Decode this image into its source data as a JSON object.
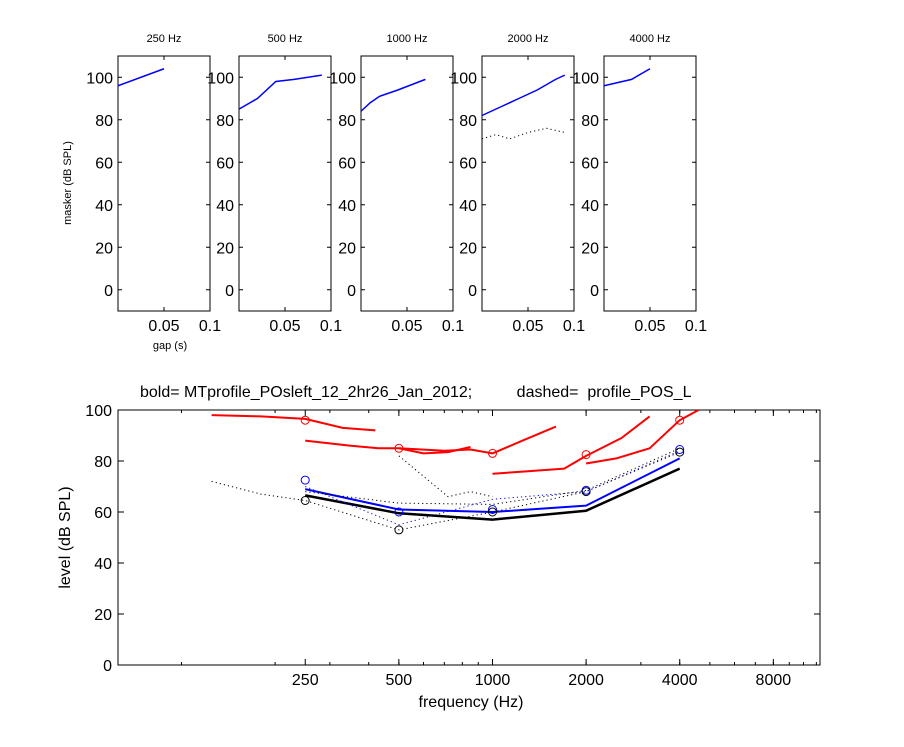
{
  "chart_data": [
    {
      "type": "line",
      "title": "250 Hz",
      "xlabel": "gap (s)",
      "ylabel": "masker (dB SPL)",
      "xlim": [
        0,
        0.1
      ],
      "ylim": [
        -10,
        110
      ],
      "xticks": [
        "0.05",
        "0.1"
      ],
      "yticks": [
        "0",
        "20",
        "40",
        "60",
        "80",
        "100"
      ],
      "series": [
        {
          "style": "solid",
          "color": "#0000ff",
          "x": [
            0.0,
            0.05
          ],
          "y": [
            96,
            104
          ]
        }
      ]
    },
    {
      "type": "line",
      "title": "500 Hz",
      "xlim": [
        0,
        0.1
      ],
      "ylim": [
        -10,
        110
      ],
      "xticks": [
        "0.05",
        "0.1"
      ],
      "yticks": [
        "0",
        "20",
        "40",
        "60",
        "80",
        "100"
      ],
      "series": [
        {
          "style": "solid",
          "color": "#0000ff",
          "x": [
            0.0,
            0.02,
            0.04,
            0.06,
            0.09
          ],
          "y": [
            85,
            90,
            98,
            99,
            101
          ]
        }
      ]
    },
    {
      "type": "line",
      "title": "1000 Hz",
      "xlim": [
        0,
        0.1
      ],
      "ylim": [
        -10,
        110
      ],
      "xticks": [
        "0.05",
        "0.1"
      ],
      "yticks": [
        "0",
        "20",
        "40",
        "60",
        "80",
        "100"
      ],
      "series": [
        {
          "style": "solid",
          "color": "#0000ff",
          "x": [
            0.0,
            0.01,
            0.02,
            0.04,
            0.07
          ],
          "y": [
            84,
            88,
            91,
            94,
            99
          ]
        }
      ]
    },
    {
      "type": "line",
      "title": "2000 Hz",
      "xlim": [
        0,
        0.1
      ],
      "ylim": [
        -10,
        110
      ],
      "xticks": [
        "0.05",
        "0.1"
      ],
      "yticks": [
        "0",
        "20",
        "40",
        "60",
        "80",
        "100"
      ],
      "series": [
        {
          "style": "solid",
          "color": "#0000ff",
          "x": [
            0.0,
            0.02,
            0.04,
            0.06,
            0.08,
            0.09
          ],
          "y": [
            82,
            86,
            90,
            94,
            99,
            101
          ]
        },
        {
          "style": "dotted",
          "color": "#000000",
          "x": [
            0.0,
            0.015,
            0.03,
            0.05,
            0.07,
            0.09
          ],
          "y": [
            71,
            73,
            71,
            74,
            76,
            74
          ]
        }
      ]
    },
    {
      "type": "line",
      "title": "4000 Hz",
      "xlim": [
        0,
        0.1
      ],
      "ylim": [
        -10,
        110
      ],
      "xticks": [
        "0.05",
        "0.1"
      ],
      "yticks": [
        "0",
        "20",
        "40",
        "60",
        "80",
        "100"
      ],
      "series": [
        {
          "style": "solid",
          "color": "#0000ff",
          "x": [
            0.0,
            0.01,
            0.03,
            0.05
          ],
          "y": [
            96,
            97,
            99,
            104
          ]
        }
      ]
    },
    {
      "type": "line",
      "title": "bold= MTprofile_POsleft_12_2hr26_Jan_2012;          dashed=  profile_POS_L",
      "xlabel": "frequency (Hz)",
      "ylabel": "level (dB SPL)",
      "x_scale": "log",
      "xlim": [
        62.5,
        11300
      ],
      "ylim": [
        0,
        100
      ],
      "xticks": [
        250,
        500,
        1000,
        2000,
        4000,
        8000
      ],
      "yticks": [
        0,
        20,
        40,
        60,
        80,
        100
      ],
      "series": [
        {
          "style": "solid",
          "color": "#000000",
          "width": 2.5,
          "x": [
            250,
            500,
            1000,
            2000,
            4000
          ],
          "y": [
            66.5,
            59.5,
            57,
            60.5,
            77
          ]
        },
        {
          "style": "solid",
          "color": "#0000ff",
          "width": 2,
          "x": [
            250,
            500,
            1000,
            2000,
            4000
          ],
          "y": [
            69,
            61,
            60,
            62.5,
            81
          ]
        },
        {
          "style": "dotted",
          "color": "#000000",
          "x": [
            125,
            180,
            250,
            500,
            1000,
            2000,
            4000
          ],
          "y": [
            72,
            67,
            64.5,
            53,
            60,
            68,
            83.5
          ]
        },
        {
          "style": "dotted",
          "color": "#000000",
          "x": [
            250,
            500,
            1000,
            2000,
            4000
          ],
          "y": [
            68,
            63.5,
            63,
            68.5,
            85
          ]
        },
        {
          "style": "dotted",
          "color": "#0000ff",
          "x": [
            250,
            500,
            1000,
            2000,
            4000
          ],
          "y": [
            70,
            55,
            65,
            68,
            84
          ]
        },
        {
          "style": "dotted",
          "color": "#000000",
          "x": [
            500,
            600,
            720,
            850,
            1000
          ],
          "y": [
            82,
            74,
            66,
            68,
            66
          ]
        },
        {
          "style": "solid",
          "color": "#ff0000",
          "width": 2,
          "x": [
            125,
            180,
            250,
            330,
            420
          ],
          "y": [
            98,
            97.5,
            96.5,
            93,
            92
          ]
        },
        {
          "style": "solid",
          "color": "#ff0000",
          "width": 2,
          "x": [
            250,
            350,
            430,
            500,
            600,
            720,
            850
          ],
          "y": [
            88,
            86,
            85,
            85,
            83,
            83.5,
            85.5
          ]
        },
        {
          "style": "solid",
          "color": "#ff0000",
          "width": 2,
          "x": [
            500,
            700,
            850,
            1000,
            1250,
            1600
          ],
          "y": [
            85,
            84,
            84.5,
            83,
            88,
            93.5
          ]
        },
        {
          "style": "solid",
          "color": "#ff0000",
          "width": 2,
          "x": [
            1000,
            1300,
            1700,
            2000,
            2600,
            3200
          ],
          "y": [
            75,
            76,
            77,
            82,
            89,
            97.5
          ]
        },
        {
          "style": "solid",
          "color": "#ff0000",
          "width": 2,
          "x": [
            2000,
            2500,
            3200,
            4000,
            4600
          ],
          "y": [
            79,
            81,
            85,
            96,
            100
          ]
        }
      ],
      "markers": [
        {
          "color": "#ff0000",
          "x": [
            250,
            500,
            1000,
            2000,
            4000
          ],
          "y": [
            96,
            85,
            83,
            82.5,
            96
          ]
        },
        {
          "color": "#0000ff",
          "x": [
            250,
            500,
            1000,
            2000,
            4000
          ],
          "y": [
            72.5,
            60,
            61,
            68.5,
            84.5
          ]
        },
        {
          "color": "#000000",
          "x": [
            250,
            500,
            1000,
            2000,
            4000
          ],
          "y": [
            64.5,
            53,
            60,
            68,
            83.5
          ]
        }
      ]
    }
  ]
}
